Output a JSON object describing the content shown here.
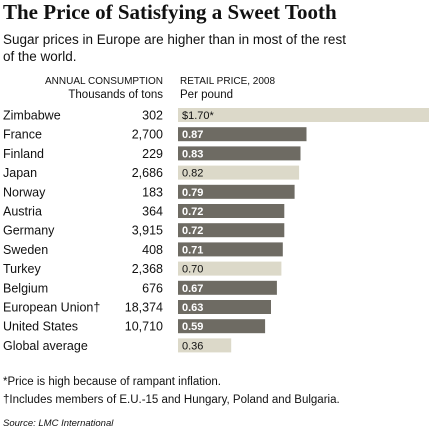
{
  "chart_data": {
    "type": "bar",
    "title": "The Price of Satisfying a Sweet Tooth",
    "subtitle": "Sugar prices in Europe are higher than in most of the rest of the world.",
    "consumption_header": [
      "ANNUAL CONSUMPTION",
      "Thousands of tons"
    ],
    "price_header": [
      "RETAIL PRICE, 2008",
      "Per pound"
    ],
    "categories": [
      "Zimbabwe",
      "France",
      "Finland",
      "Japan",
      "Norway",
      "Austria",
      "Germany",
      "Sweden",
      "Turkey",
      "Belgium",
      "European Union†",
      "United States",
      "Global average"
    ],
    "consumption": [
      "302",
      "2,700",
      "229",
      "2,686",
      "183",
      "364",
      "3,915",
      "408",
      "2,368",
      "676",
      "18,374",
      "10,710",
      ""
    ],
    "values": [
      1.7,
      0.87,
      0.83,
      0.82,
      0.79,
      0.72,
      0.72,
      0.71,
      0.7,
      0.67,
      0.63,
      0.59,
      0.36
    ],
    "price_labels": [
      "$1.70*",
      "0.87",
      "0.83",
      "0.82",
      "0.79",
      "0.72",
      "0.72",
      "0.71",
      "0.70",
      "0.67",
      "0.63",
      "0.59",
      "0.36"
    ],
    "highlight": [
      true,
      false,
      false,
      true,
      false,
      false,
      false,
      false,
      true,
      false,
      false,
      false,
      true
    ],
    "colors": {
      "dark": "#6e6b63",
      "light": "#dcd9c9"
    },
    "footnotes": [
      "*Price is high because of rampant inflation.",
      "†Includes members of E.U.-15 and Hungary, Poland and Bulgaria."
    ],
    "source": "Source: LMC International"
  }
}
